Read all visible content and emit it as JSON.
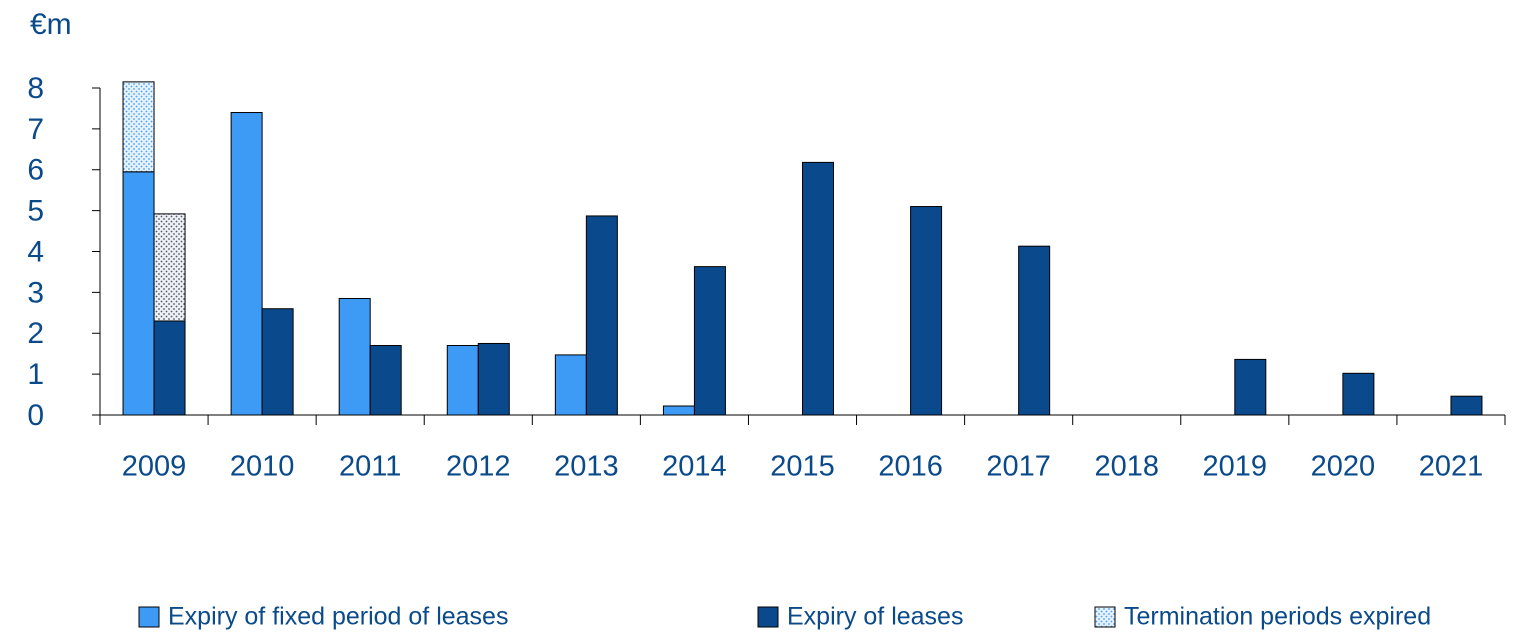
{
  "chart_data": {
    "type": "bar",
    "unit": "€m",
    "categories": [
      "2009",
      "2010",
      "2011",
      "2012",
      "2013",
      "2014",
      "2015",
      "2016",
      "2017",
      "2018",
      "2019",
      "2020",
      "2021"
    ],
    "series": [
      {
        "name": "Expiry of fixed period of leases",
        "color": "#3d9bf5",
        "values": [
          5.95,
          7.4,
          2.85,
          1.7,
          1.47,
          0.22,
          null,
          null,
          null,
          null,
          null,
          null,
          null
        ]
      },
      {
        "name": "Expiry of leases",
        "color": "#0a4a8c",
        "values": [
          2.3,
          2.6,
          1.7,
          1.75,
          4.87,
          3.63,
          6.18,
          5.1,
          4.13,
          0,
          1.36,
          1.02,
          0.46
        ]
      },
      {
        "name": "Termination periods expired",
        "color": "pattern",
        "values": [
          2.2,
          null,
          null,
          null,
          null,
          null,
          null,
          null,
          null,
          null,
          null,
          null,
          null
        ],
        "values_leases": [
          2.62,
          null,
          null,
          null,
          null,
          null,
          null,
          null,
          null,
          null,
          null,
          null,
          null
        ]
      }
    ],
    "ylim": [
      0,
      8
    ],
    "yticks": [
      0,
      1,
      2,
      3,
      4,
      5,
      6,
      7,
      8
    ],
    "grid": false
  }
}
